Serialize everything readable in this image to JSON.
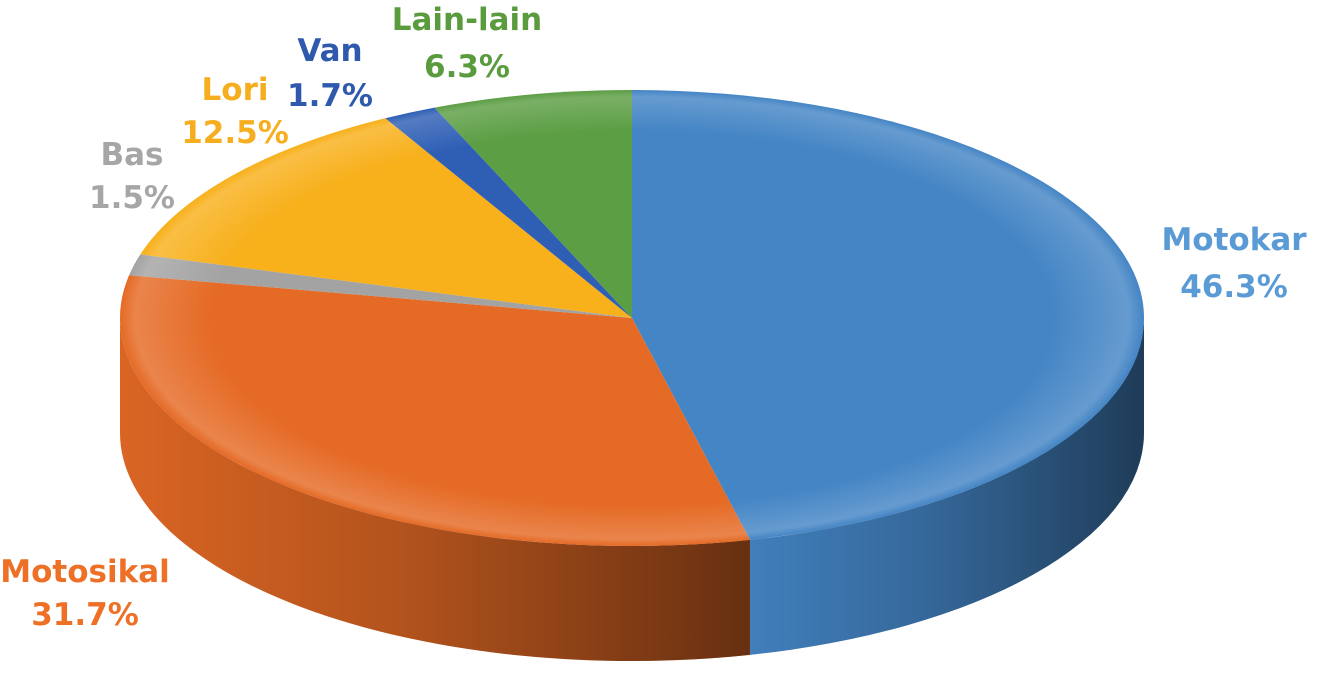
{
  "chart_data": {
    "type": "pie",
    "style": "3d",
    "slices": [
      {
        "label": "Motokar",
        "value": 46.3,
        "value_label": "46.3%",
        "color": "#4485c5",
        "text_color": "#5b9bd5"
      },
      {
        "label": "Motosikal",
        "value": 31.7,
        "value_label": "31.7%",
        "color": "#e56a25",
        "text_color": "#ed7026"
      },
      {
        "label": "Bas",
        "value": 1.5,
        "value_label": "1.5%",
        "color": "#a3a3a3",
        "text_color": "#a6a6a6"
      },
      {
        "label": "Lori",
        "value": 12.5,
        "value_label": "12.5%",
        "color": "#f8b01b",
        "text_color": "#f6ae1e"
      },
      {
        "label": "Van",
        "value": 1.7,
        "value_label": "1.7%",
        "color": "#2f5fb5",
        "text_color": "#2e59ac"
      },
      {
        "label": "Lain-lain",
        "value": 6.3,
        "value_label": "6.3%",
        "color": "#5c9e44",
        "text_color": "#5a9b3e"
      }
    ]
  }
}
